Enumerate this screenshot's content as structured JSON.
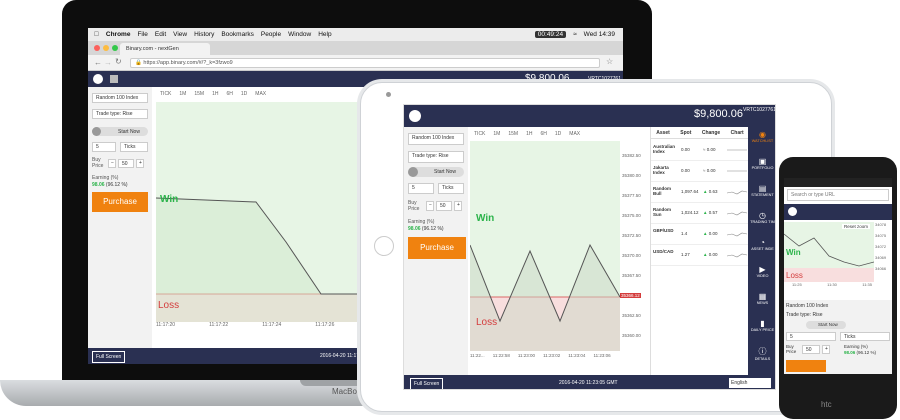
{
  "mac": {
    "menubar": [
      "Chrome",
      "File",
      "Edit",
      "View",
      "History",
      "Bookmarks",
      "People",
      "Window",
      "Help"
    ],
    "timer": "00:49:24",
    "clock": "Wed 14:39",
    "tab_title": "Binary.com - nextGen",
    "url": "https://app.binary.com/#/?_k=3fzwo9",
    "balance": "$9,800.06",
    "account": "VRTC1027761",
    "asset": "Random 100 Index",
    "trade_type": "Trade type: Rise",
    "start_now": "Start Now",
    "duration": "5",
    "duration_unit": "Ticks",
    "buy_price_label": "Buy Price",
    "amount": "50",
    "minus": "−",
    "plus": "+",
    "earning_label": "Earning (%)",
    "earning_value": "98.06",
    "earning_pct": "(96.12 %)",
    "purchase": "Purchase",
    "tick_buttons": [
      "TICK",
      "1M",
      "15M",
      "1H",
      "6H",
      "1D",
      "MAX"
    ],
    "win": "Win",
    "loss": "Loss",
    "x_ticks": [
      "11:17:20",
      "11:17:22",
      "11:17:24",
      "11:17:26"
    ],
    "full_screen": "Full Screen",
    "timestamp": "2016-04-20 11:17:2",
    "brand": "MacBo"
  },
  "ipad": {
    "balance": "$9,800.06",
    "account": "VRTC1027761",
    "asset": "Random 100 Index",
    "trade_type": "Trade type: Rise",
    "start_now": "Start Now",
    "duration": "5",
    "duration_unit": "Ticks",
    "buy_price_label": "Buy Price",
    "amount": "50",
    "minus": "−",
    "plus": "+",
    "earning_label": "Earning (%)",
    "earning_value": "98.06",
    "earning_pct": "(96.12 %)",
    "purchase": "Purchase",
    "tick_buttons": [
      "TICK",
      "1M",
      "15M",
      "1H",
      "6H",
      "1D",
      "MAX"
    ],
    "win": "Win",
    "loss": "Loss",
    "y_ticks": [
      "35382.50",
      "35380.00",
      "35377.50",
      "35375.00",
      "35372.50",
      "35370.00",
      "35367.50",
      "35365.00",
      "35362.50",
      "35360.00"
    ],
    "current_price": "35366.12",
    "x_ticks": [
      "11:22...",
      "11:22:58",
      "11:23:00",
      "11:23:02",
      "11:23:04",
      "11:23:06"
    ],
    "watchlist_headers": [
      "Asset",
      "Spot",
      "Change",
      "Chart"
    ],
    "watchlist": [
      {
        "asset": "Australian Index",
        "spot": "0.00",
        "change": "0.00",
        "dir": "flat"
      },
      {
        "asset": "Jakarta Index",
        "spot": "0.00",
        "change": "0.00",
        "dir": "flat"
      },
      {
        "asset": "Random Bull",
        "spot": "1,097.64",
        "change": "0.63",
        "dir": "up"
      },
      {
        "asset": "Random Sun",
        "spot": "1,024.12",
        "change": "0.57",
        "dir": "up"
      },
      {
        "asset": "GBP/USD",
        "spot": "1.4",
        "change": "0.00",
        "dir": "up"
      },
      {
        "asset": "USD/CAD",
        "spot": "1.27",
        "change": "0.00",
        "dir": "up"
      }
    ],
    "side_nav": [
      "WATCHLIST",
      "PORTFOLIO",
      "STATEMENT",
      "TRADING TIM",
      "ASSET INDE",
      "VIDEO",
      "NEWS",
      "DAILY PRICE",
      "DETAILS"
    ],
    "full_screen": "Full Screen",
    "timestamp": "2016-04-20 11:23:05 GMT",
    "language": "English"
  },
  "phone": {
    "search_placeholder": "Search or type URL",
    "reset_zoom": "Reset zoom",
    "win": "Win",
    "loss": "Loss",
    "y_ticks": [
      "34078",
      "34075",
      "34072",
      "34069",
      "34066"
    ],
    "x_ticks": [
      "11:25",
      "11:30",
      "11:35"
    ],
    "asset": "Random 100 Index",
    "trade_type": "Trade type: Rise",
    "start_now": "Start Now",
    "duration": "5",
    "duration_unit": "Ticks",
    "buy_label": "Buy Price",
    "amount": "50",
    "plus": "+",
    "earning_label": "Earning (%)",
    "earning_value": "98.06",
    "earning_pct": "(96.12 %)",
    "brand": "htc"
  },
  "colors": {
    "nav": "#2a3052",
    "purchase": "#f0820f",
    "win": "#2bb34a",
    "loss": "#d43c3c"
  }
}
